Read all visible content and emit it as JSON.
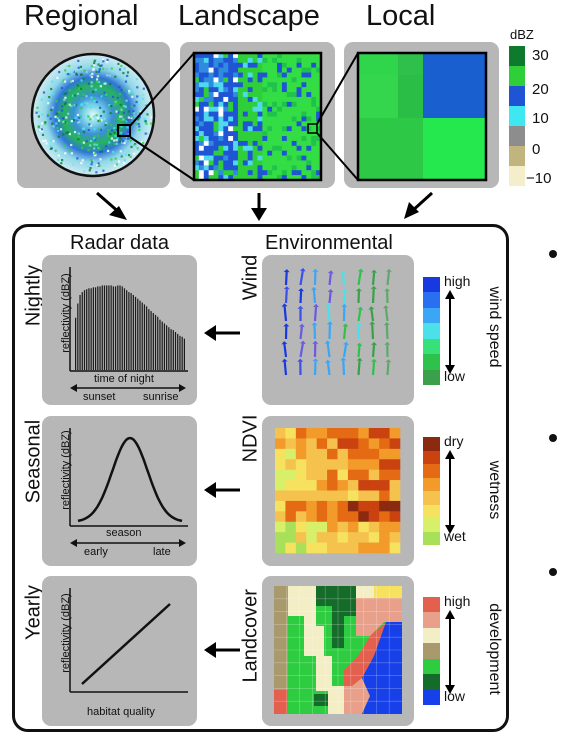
{
  "top": {
    "titles": [
      "Regional",
      "Landscape",
      "Local"
    ],
    "legend_title": "dBZ",
    "legend_ticks": [
      "30",
      "20",
      "10",
      "0",
      "−10"
    ],
    "legend_colors": [
      "#0e7a2e",
      "#2fcf3a",
      "#1f55d4",
      "#3fe8f0",
      "#8d8d8d",
      "#c2b47e",
      "#f5eecb"
    ]
  },
  "box": {
    "col_left": "Radar data",
    "col_right": "Environmental",
    "rows": [
      {
        "scale": "Nightly",
        "chart_ylabel": "reflectivity (dBZ)",
        "chart_xlabel": "time of night",
        "chart_xleft": "sunset",
        "chart_xright": "sunrise",
        "env_label": "Wind",
        "legend_top": "high",
        "legend_bottom": "low",
        "legend_title": "wind speed"
      },
      {
        "scale": "Seasonal",
        "chart_ylabel": "reflectivity (dBZ)",
        "chart_xlabel": "season",
        "chart_xleft": "early",
        "chart_xright": "late",
        "env_label": "NDVI",
        "legend_top": "dry",
        "legend_bottom": "wet",
        "legend_title": "wetness"
      },
      {
        "scale": "Yearly",
        "chart_ylabel": "reflectivity (dBZ)",
        "chart_xlabel": "habitat quality",
        "env_label": "Landcover",
        "legend_top": "high",
        "legend_bottom": "low",
        "legend_title": "development"
      }
    ]
  },
  "chart_data": [
    {
      "type": "bar",
      "xlabel": "time of night",
      "ylabel": "reflectivity (dBZ)",
      "values": [
        0.55,
        0.7,
        0.79,
        0.82,
        0.84,
        0.85,
        0.86,
        0.86,
        0.87,
        0.87,
        0.88,
        0.88,
        0.89,
        0.89,
        0.89,
        0.89,
        0.89,
        0.88,
        0.88,
        0.89,
        0.89,
        0.88,
        0.86,
        0.84,
        0.82,
        0.81,
        0.79,
        0.77,
        0.75,
        0.73,
        0.71,
        0.69,
        0.67,
        0.64,
        0.62,
        0.6,
        0.58,
        0.56,
        0.53,
        0.51,
        0.49,
        0.47,
        0.45,
        0.43,
        0.42,
        0.4,
        0.38,
        0.36,
        0.35,
        0.33
      ]
    },
    {
      "type": "line",
      "xlabel": "season",
      "ylabel": "reflectivity (dBZ)",
      "curve": "bell"
    },
    {
      "type": "line",
      "xlabel": "habitat quality",
      "ylabel": "reflectivity (dBZ)",
      "curve": "linear-increasing"
    }
  ],
  "colors": {
    "panel": "#b7b7b7",
    "wind_legend": [
      "#1838e0",
      "#2a6ef2",
      "#3aa6f5",
      "#4ce0e8",
      "#38e07a",
      "#2ec24c",
      "#3aa04a"
    ],
    "ndvi_legend": [
      "#8c2a10",
      "#c9420f",
      "#e46a14",
      "#f29a2a",
      "#f6c24e",
      "#f6e25e",
      "#d8ef6a",
      "#a8e05a"
    ],
    "landcover_legend": [
      "#e4604e",
      "#e8a08a",
      "#f3eec6",
      "#a99a6e",
      "#2ecc40",
      "#156b2a",
      "#1740e8"
    ]
  }
}
